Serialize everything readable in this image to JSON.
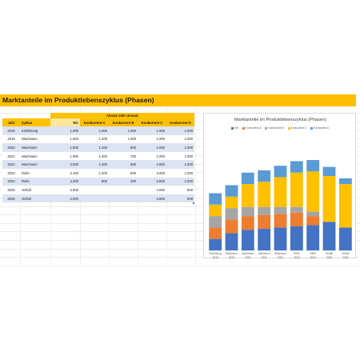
{
  "sheet": {
    "title": "Marktanteile im Produktlebenszyklus (Phasen)"
  },
  "table": {
    "group_header": "Absatz oder Umsatz",
    "headers": [
      "Jahr",
      "Zyklus",
      "Wir",
      "Konkurrent A",
      "Konkurrent B",
      "Konkurrent C",
      "Konkurrent D"
    ],
    "rows": [
      [
        "2018",
        "Einführung",
        "1.000",
        "1.000",
        "1.000",
        "1.000",
        "1.000"
      ],
      [
        "2019",
        "Wachstum",
        "1.500",
        "1.200",
        "1.000",
        "1.000",
        "1.000"
      ],
      [
        "2020",
        "Wachstum",
        "1.800",
        "1.200",
        "800",
        "2.000",
        "1.000"
      ],
      [
        "2021",
        "Wachstum",
        "1.900",
        "1.200",
        "700",
        "2.200",
        "1.000"
      ],
      [
        "2022",
        "Wachstum",
        "2.000",
        "1.200",
        "600",
        "2.600",
        "1.000"
      ],
      [
        "2023",
        "Reife",
        "2.100",
        "1.200",
        "500",
        "3.000",
        "1.000"
      ],
      [
        "2024",
        "Reife",
        "2.200",
        "800",
        "400",
        "3.500",
        "1.000"
      ],
      [
        "2025",
        "Verfall",
        "2.500",
        "",
        "",
        "4.000",
        "800"
      ],
      [
        "2026",
        "Verfall",
        "2.000",
        "",
        "",
        "3.800",
        "500"
      ]
    ]
  },
  "chart_data": {
    "type": "bar",
    "stacked": true,
    "title": "Marktanteile im Produktlebenszyklus (Phasen)",
    "legend_position": "top",
    "categories": [
      [
        "Einführung",
        "2018"
      ],
      [
        "Wachstum",
        "2019"
      ],
      [
        "Wachstum",
        "2020"
      ],
      [
        "Wachstum",
        "2021"
      ],
      [
        "Wachstum",
        "2022"
      ],
      [
        "Reife",
        "2023"
      ],
      [
        "Reife",
        "2024"
      ],
      [
        "Verfall",
        "2025"
      ],
      [
        "Verfall",
        "2026"
      ]
    ],
    "series": [
      {
        "name": "Wir",
        "color": "#4472c4",
        "values": [
          1000,
          1500,
          1800,
          1900,
          2000,
          2100,
          2200,
          2500,
          2000
        ]
      },
      {
        "name": "Konkurrent A",
        "color": "#ed7d31",
        "values": [
          1000,
          1200,
          1200,
          1200,
          1200,
          1200,
          800,
          0,
          0
        ]
      },
      {
        "name": "Konkurrent B",
        "color": "#a5a5a5",
        "values": [
          1000,
          1000,
          800,
          700,
          600,
          500,
          400,
          0,
          0
        ]
      },
      {
        "name": "Konkurrent C",
        "color": "#ffc000",
        "values": [
          1000,
          1000,
          2000,
          2200,
          2600,
          3000,
          3500,
          4000,
          3800
        ]
      },
      {
        "name": "Konkurrent D",
        "color": "#5b9bd5",
        "values": [
          1000,
          1000,
          1000,
          1000,
          1000,
          1000,
          1000,
          800,
          500
        ]
      }
    ],
    "ylim": [
      0,
      10000
    ]
  }
}
